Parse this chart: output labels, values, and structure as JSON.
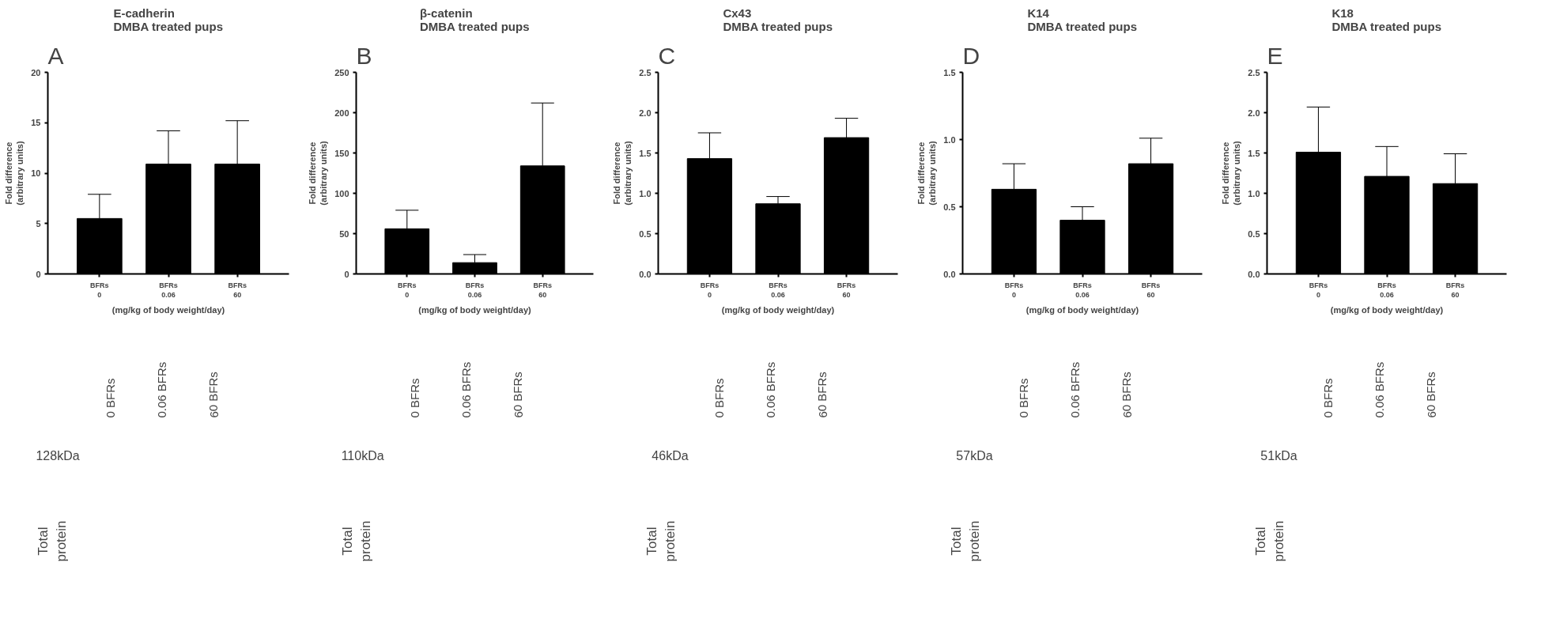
{
  "chart_data": [
    {
      "type": "bar",
      "title": "E-cadherin\nDMBA treated pups",
      "xlabel": "(mg/kg of body weight/day)",
      "ylabel": "Fold difference\n(arbitrary units)",
      "categories": [
        "BFRs\n0",
        "BFRs\n0.06",
        "BFRs\n60"
      ],
      "values": [
        5.5,
        10.9,
        10.9
      ],
      "errors": [
        [
          5.5,
          7.9
        ],
        [
          10.9,
          14.2
        ],
        [
          10.9,
          15.2
        ]
      ],
      "color": "#000000",
      "ylim": [
        0,
        20
      ],
      "yticks": [
        0,
        5,
        10,
        15,
        20
      ],
      "grid": false,
      "annotations": [
        "A",
        "0 BFRs",
        "0.06 BFRs",
        "60 BFRs",
        "128kDa",
        "Total\nprotein"
      ]
    },
    {
      "type": "bar",
      "title": "β-catenin\nDMBA treated pups",
      "xlabel": "(mg/kg of body weight/day)",
      "ylabel": "Fold difference\n(arbitrary units)",
      "categories": [
        "BFRs\n0",
        "BFRs\n0.06",
        "BFRs\n60"
      ],
      "values": [
        56,
        14,
        134
      ],
      "errors": [
        [
          56,
          79
        ],
        [
          14,
          24
        ],
        [
          134,
          212
        ]
      ],
      "color": "#000000",
      "ylim": [
        0,
        250
      ],
      "yticks": [
        0,
        50,
        100,
        150,
        200,
        250
      ],
      "grid": false,
      "annotations": [
        "B",
        "0 BFRs",
        "0.06 BFRs",
        "60 BFRs",
        "110kDa",
        "Total\nprotein"
      ]
    },
    {
      "type": "bar",
      "title": "Cx43\nDMBA treated pups",
      "xlabel": "(mg/kg of body weight/day)",
      "ylabel": "Fold difference\n(arbitrary units)",
      "categories": [
        "BFRs\n0",
        "BFRs\n0.06",
        "BFRs\n60"
      ],
      "values": [
        1.43,
        0.87,
        1.69
      ],
      "errors": [
        [
          1.43,
          1.75
        ],
        [
          0.87,
          0.96
        ],
        [
          1.69,
          1.93
        ]
      ],
      "color": "#000000",
      "ylim": [
        0,
        2.5
      ],
      "yticks": [
        {
          "value": 0,
          "label": "0.0"
        },
        0.5,
        {
          "value": 1,
          "label": "1.0"
        },
        1.5,
        {
          "value": 2,
          "label": "2.0"
        },
        2.5
      ],
      "grid": false,
      "annotations": [
        "C",
        "0 BFRs",
        "0.06 BFRs",
        "60 BFRs",
        "46kDa",
        "Total\nprotein"
      ]
    },
    {
      "type": "bar",
      "title": "K14\nDMBA treated pups",
      "xlabel": "(mg/kg of body weight/day)",
      "ylabel": "Fold difference\n(arbitrary units)",
      "categories": [
        "BFRs\n0",
        "BFRs\n0.06",
        "BFRs\n60"
      ],
      "values": [
        0.63,
        0.4,
        0.82
      ],
      "errors": [
        [
          0.63,
          0.82
        ],
        [
          0.4,
          0.5
        ],
        [
          0.82,
          1.01
        ]
      ],
      "color": "#000000",
      "ylim": [
        0,
        1.5
      ],
      "yticks": [
        {
          "value": 0,
          "label": "0.0"
        },
        0.5,
        {
          "value": 1,
          "label": "1.0"
        },
        1.5
      ],
      "grid": false,
      "annotations": [
        "D",
        "0 BFRs",
        "0.06 BFRs",
        "60 BFRs",
        "57kDa",
        "Total\nprotein"
      ]
    },
    {
      "type": "bar",
      "title": "K18\nDMBA treated pups",
      "xlabel": "(mg/kg of body weight/day)",
      "ylabel": "Fold difference\n(arbitrary units)",
      "categories": [
        "BFRs\n0",
        "BFRs\n0.06",
        "BFRs\n60"
      ],
      "values": [
        1.51,
        1.21,
        1.12
      ],
      "errors": [
        [
          1.51,
          2.07
        ],
        [
          1.21,
          1.58
        ],
        [
          1.12,
          1.49
        ]
      ],
      "color": "#000000",
      "ylim": [
        0,
        2.5
      ],
      "yticks": [
        {
          "value": 0,
          "label": "0.0"
        },
        0.5,
        {
          "value": 1,
          "label": "1.0"
        },
        1.5,
        {
          "value": 2,
          "label": "2.0"
        },
        2.5
      ],
      "grid": false,
      "annotations": [
        "E",
        "0 BFRs",
        "0.06 BFRs",
        "60 BFRs",
        "51kDa",
        "Total\nprotein"
      ]
    }
  ]
}
